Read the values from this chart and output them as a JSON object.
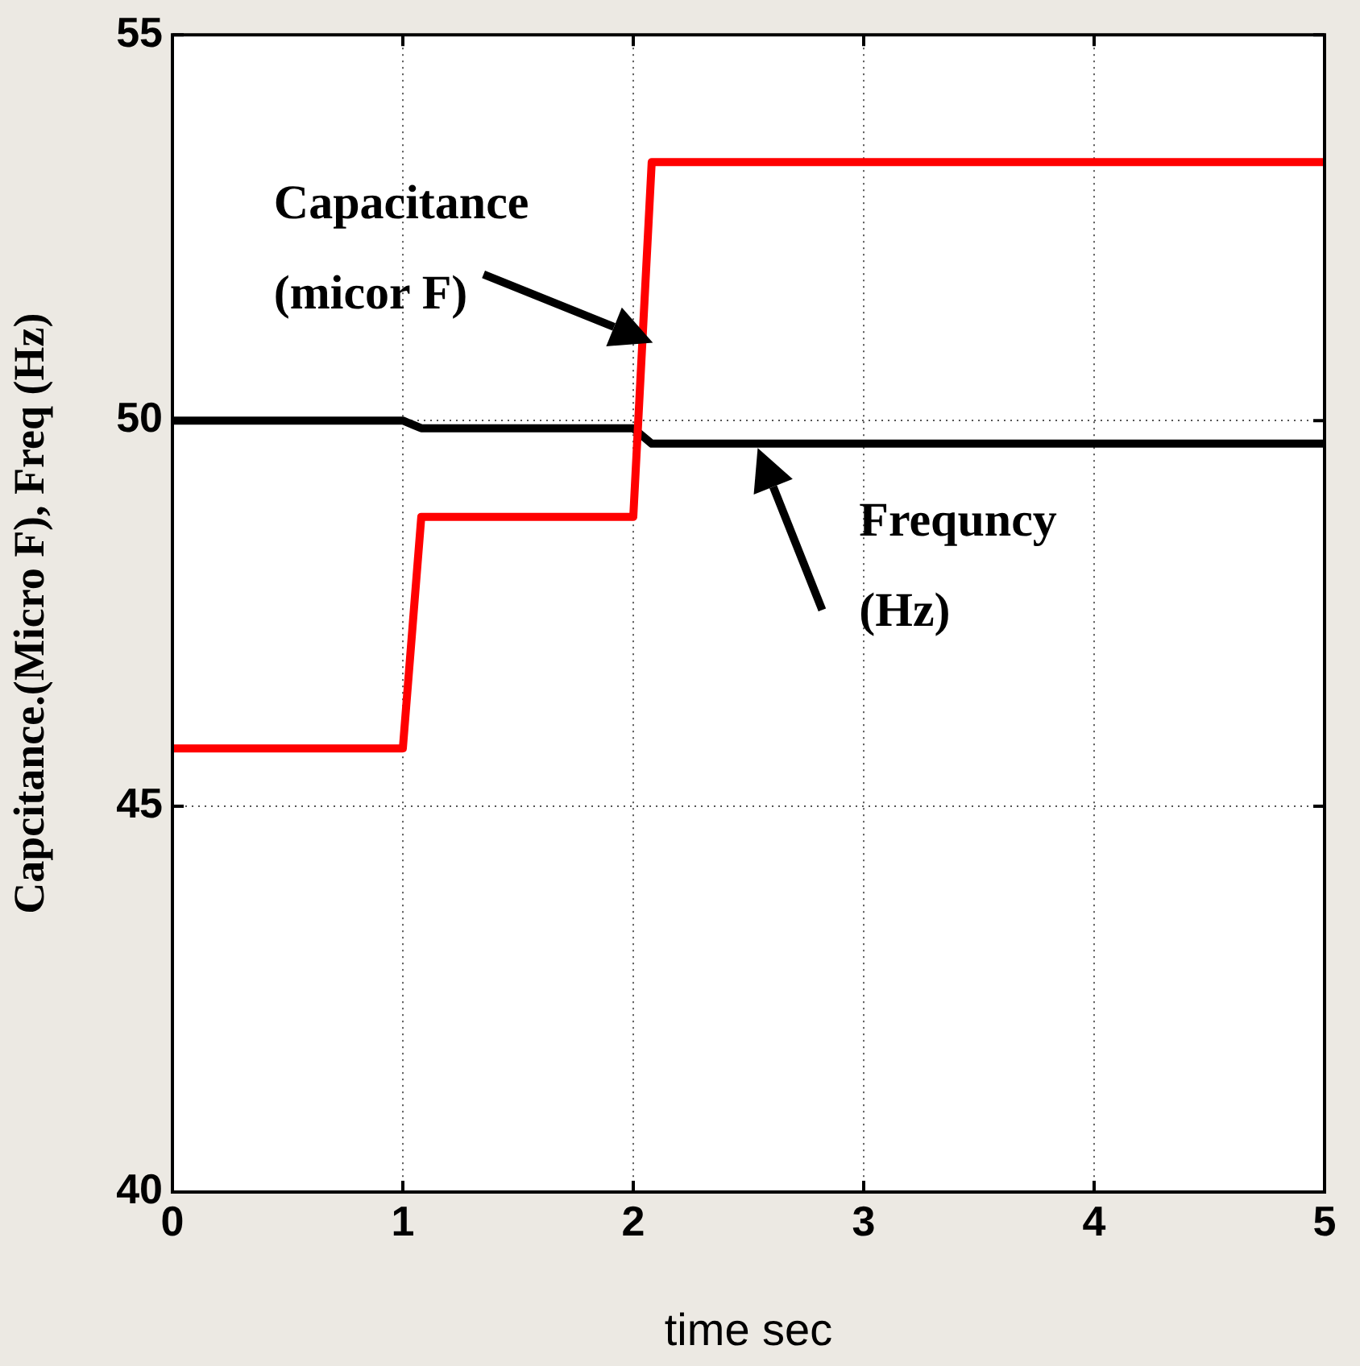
{
  "chart_data": {
    "type": "line",
    "xlabel": "time sec",
    "ylabel": "Capcitance.(Micro F), Freq (Hz)",
    "x": [
      0,
      1,
      1.08,
      2,
      2.08,
      5
    ],
    "series": [
      {
        "color": "#ff0000",
        "values": [
          45.75,
          45.75,
          48.75,
          48.75,
          53.35,
          53.35
        ]
      },
      {
        "color": "#000000",
        "values": [
          50.0,
          50.0,
          49.9,
          49.9,
          49.7,
          49.7
        ]
      }
    ],
    "xlim": [
      0,
      5
    ],
    "xticks": [
      0,
      1,
      2,
      3,
      4,
      5
    ],
    "ylim": [
      40,
      55
    ],
    "yticks": [
      40,
      45,
      50,
      55
    ],
    "grid": true,
    "legend": false,
    "marker": "none",
    "line_style": "solid",
    "annotations": [
      "Capacitance\n(micor F)",
      "Frequncy\n(Hz)"
    ]
  }
}
